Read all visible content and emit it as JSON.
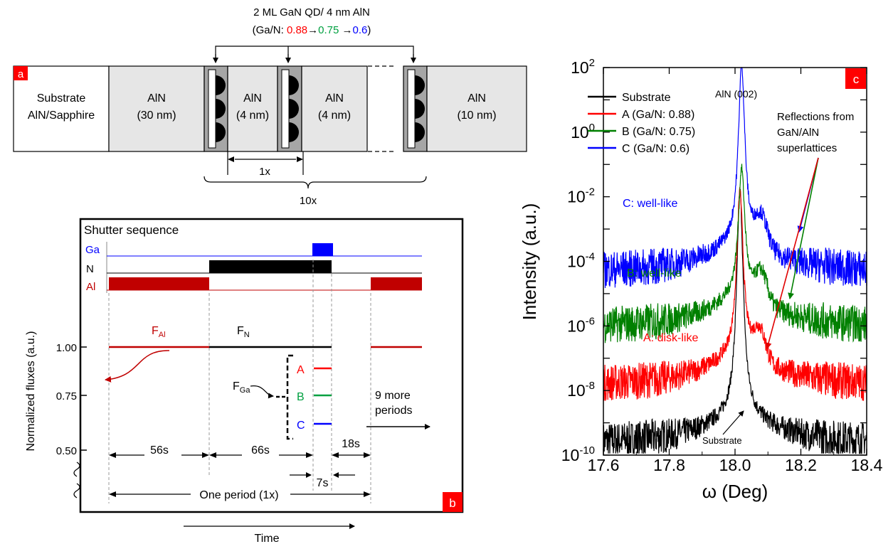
{
  "panel_a": {
    "tag": "a",
    "title_line1": "2 ML GaN QD/ 4 nm AlN",
    "title_prefix": "(Ga/N: ",
    "title_v1": "0.88",
    "title_arrow1": "→",
    "title_v2": "0.75",
    "title_arrow2": " →",
    "title_v3": "0.6",
    "title_suffix": ")",
    "substrate_line1": "Substrate",
    "substrate_line2": "AlN/Sapphire",
    "layers": [
      {
        "name": "AlN",
        "thickness": "(30 nm)"
      },
      {
        "name": "AlN",
        "thickness": "(4 nm)"
      },
      {
        "name": "AlN",
        "thickness": "(4 nm)"
      },
      {
        "name": "AlN",
        "thickness": "(10 nm)"
      }
    ],
    "repeat_1": "1x",
    "repeat_10": "10x"
  },
  "panel_b": {
    "tag": "b",
    "title": "Shutter sequence",
    "shutters": {
      "ga": "Ga",
      "n": "N",
      "al": "Al"
    },
    "ylabel": "Normalized fluxes (a.u.)",
    "yticks": [
      "1.00",
      "0.75",
      "0.50"
    ],
    "f_al_base": "F",
    "f_al_sub": "Al",
    "f_n_base": "F",
    "f_n_sub": "N",
    "f_ga_base": "F",
    "f_ga_sub": "Ga",
    "samples": {
      "a": "A",
      "b": "B",
      "c": "C"
    },
    "more_periods_1": "9 more",
    "more_periods_2": "periods",
    "t_al": "56s",
    "t_n": "66s",
    "t_wait": "18s",
    "t_ga": "7s",
    "period": "One period (1x)",
    "xlabel": "Time",
    "flux_levels": {
      "al": 1.0,
      "n": 1.0,
      "ga_a": 0.88,
      "ga_b": 0.75,
      "ga_c": 0.6
    },
    "colors": {
      "ga": "#0000ff",
      "n": "#000000",
      "al": "#c00000",
      "a": "#ff0000",
      "b": "#00a040",
      "c": "#0000ff"
    }
  },
  "chart_data": {
    "type": "line",
    "tag": "c",
    "xlabel": "ω (Deg)",
    "ylabel": "Intensity (a.u.)",
    "xlim": [
      17.6,
      18.4
    ],
    "xticks": [
      "17.6",
      "17.8",
      "18.0",
      "18.2",
      "18.4"
    ],
    "ylim_log10": [
      -10,
      2
    ],
    "yticks": [
      {
        "base": "10",
        "exp": "2"
      },
      {
        "base": "10",
        "exp": "0"
      },
      {
        "base": "10",
        "exp": "-2"
      },
      {
        "base": "10",
        "exp": "-4"
      },
      {
        "base": "10",
        "exp": "-6"
      },
      {
        "base": "10",
        "exp": "-8"
      },
      {
        "base": "10",
        "exp": "-10"
      }
    ],
    "log_scale_y": true,
    "legend_position": "top-left",
    "series": [
      {
        "name": "Substrate",
        "color": "#000000",
        "peak_x": 18.015,
        "peak_log": -3.0,
        "base_log": -9.6
      },
      {
        "name": "A (Ga/N: 0.88)",
        "color": "#ff0000",
        "peak_x": 18.015,
        "peak_log": -3.0,
        "base_log": -7.8
      },
      {
        "name": "B (Ga/N: 0.75)",
        "color": "#008000",
        "peak_x": 18.02,
        "peak_log": -2.3,
        "base_log": -6.0
      },
      {
        "name": "C (Ga/N: 0.6)",
        "color": "#0000ff",
        "peak_x": 18.02,
        "peak_log": 0.9,
        "base_log": -4.3
      }
    ],
    "annotations": {
      "peak": "AlN (002)",
      "reflections_1": "Reflections from",
      "reflections_2": "GaN/AlN",
      "reflections_3": "superlattices",
      "c_label": "C: well-like",
      "b_label": "B: well-like",
      "a_label": "A: disk-like",
      "substrate_label": "Substrate"
    }
  }
}
